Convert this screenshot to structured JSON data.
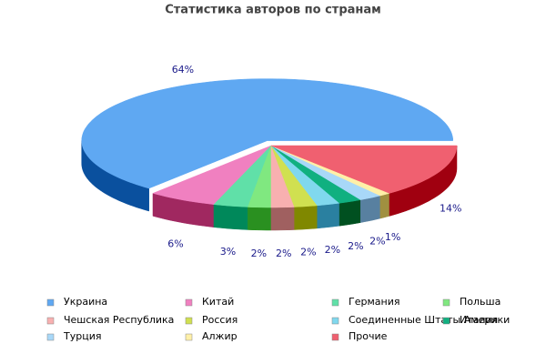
{
  "chart_data": {
    "type": "pie3d",
    "title": "Статистика авторов по странам",
    "categories": [
      "Украина",
      "Китай",
      "Германия",
      "Польша",
      "Чешская Республика",
      "Россия",
      "Соединенные Штаты Америки",
      "Италия",
      "Турция",
      "Алжир",
      "Прочие"
    ],
    "values": [
      64,
      6,
      3,
      2,
      2,
      2,
      2,
      2,
      2,
      1,
      14
    ],
    "value_labels": [
      "64%",
      "6%",
      "3%",
      "2%",
      "2%",
      "2%",
      "2%",
      "2%",
      "2%",
      "1%",
      "14%"
    ],
    "colors": [
      "#5fa8f2",
      "#f080c0",
      "#60e0a8",
      "#80e880",
      "#f8b0b0",
      "#d0e050",
      "#80d8ee",
      "#10b080",
      "#a8d8f8",
      "#fff0a8",
      "#f06070"
    ],
    "side_colors": [
      "#0a509e",
      "#a02860",
      "#00885a",
      "#2a9020",
      "#a06060",
      "#808800",
      "#2a80a0",
      "#005020",
      "#5880a0",
      "#a09040",
      "#a00010"
    ]
  }
}
